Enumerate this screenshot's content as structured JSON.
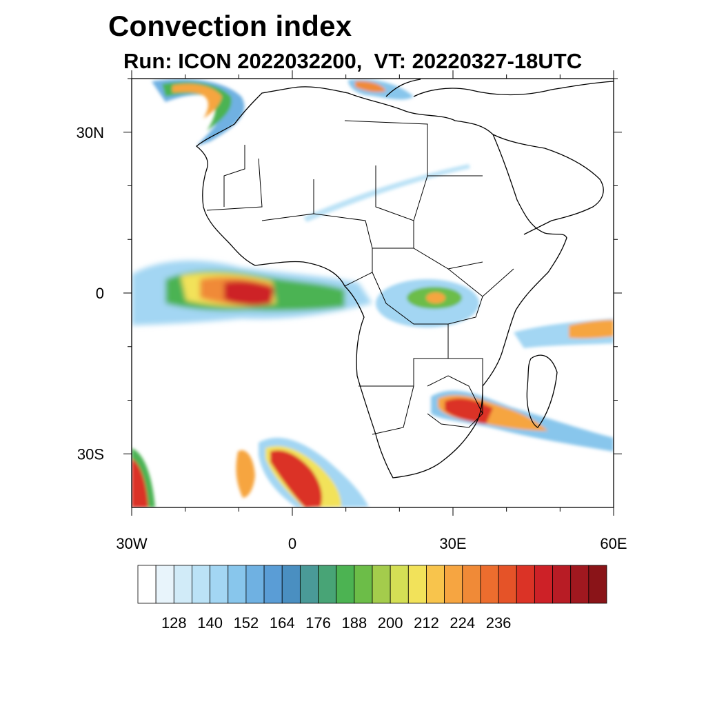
{
  "title": "Convection index",
  "subtitle": "Run: ICON 2022032200,  VT: 20220327-18UTC",
  "axes": {
    "lat_ticks": [
      {
        "value": 30,
        "label": "30N"
      },
      {
        "value": 0,
        "label": "0"
      },
      {
        "value": -30,
        "label": "30S"
      }
    ],
    "lon_ticks": [
      {
        "value": -30,
        "label": "30W"
      },
      {
        "value": 0,
        "label": "0"
      },
      {
        "value": 30,
        "label": "30E"
      },
      {
        "value": 60,
        "label": "60E"
      }
    ],
    "lon_range": [
      -30,
      60
    ],
    "lat_range": [
      -40,
      40
    ]
  },
  "colorbar": {
    "labels": [
      "128",
      "140",
      "152",
      "164",
      "176",
      "188",
      "200",
      "212",
      "224",
      "236"
    ],
    "colors": [
      "#ffffff",
      "#e8f4fb",
      "#d1ebf8",
      "#bbe2f6",
      "#a3d6f3",
      "#88c6ec",
      "#6fb1e2",
      "#5a9dd6",
      "#4a8fc1",
      "#4a9a98",
      "#48a476",
      "#4cb352",
      "#6cbd48",
      "#a4cc4c",
      "#d4df55",
      "#f2e25a",
      "#f8c44c",
      "#f6a541",
      "#f08a37",
      "#ec6d2e",
      "#e55328",
      "#db3326",
      "#cd2127",
      "#b81c25",
      "#a0181f",
      "#8a1418"
    ]
  },
  "map": {
    "region": "Africa",
    "colors": {
      "coastline": "#000000",
      "background": "#ffffff"
    }
  }
}
